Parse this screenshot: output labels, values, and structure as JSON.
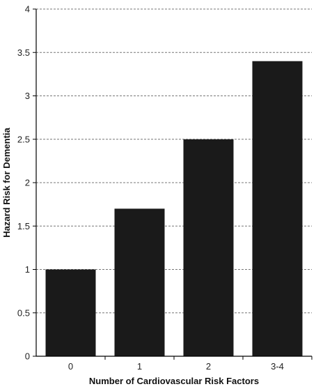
{
  "chart_data": {
    "type": "bar",
    "title": "",
    "xlabel": "Number of Cardiovascular Risk Factors",
    "ylabel": "Hazard Risk for Dementia",
    "categories": [
      "0",
      "1",
      "2",
      "3-4"
    ],
    "values": [
      1.0,
      1.7,
      2.5,
      3.4
    ],
    "ylim": [
      0,
      4
    ],
    "yticks": [
      "0",
      "0.5",
      "1",
      "1.5",
      "2",
      "2.5",
      "3",
      "3.5",
      "4"
    ],
    "grid": "horizontal-dashed",
    "legend": "none",
    "colors": {
      "bar": "#1a1a1a",
      "grid": "#777777",
      "axis": "#000000"
    }
  }
}
